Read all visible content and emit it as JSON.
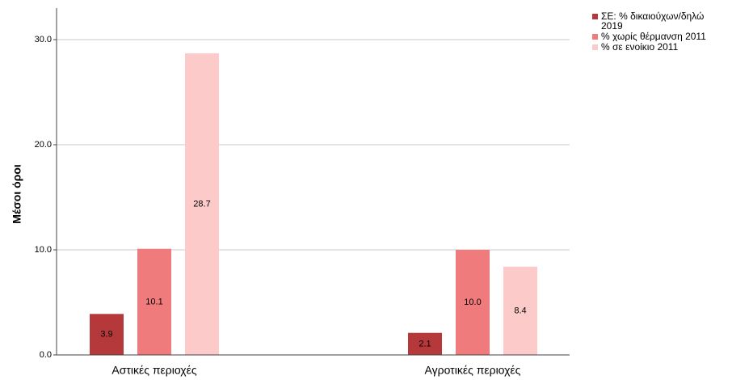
{
  "chart_data": {
    "type": "bar",
    "y_label": "Μέσοι όροι",
    "categories": [
      "Αστικές περιοχές",
      "Αγροτικές περιοχές"
    ],
    "series": [
      {
        "name": "ΣΕ: % δικαιούχων/δηλώ 2019",
        "color": "#b5393b",
        "values": [
          3.9,
          2.1
        ],
        "value_labels": [
          "3.9",
          "2.1"
        ]
      },
      {
        "name": "% χωρίς θέρμανση 2011",
        "color": "#f07b7c",
        "values": [
          10.1,
          10.0
        ],
        "value_labels": [
          "10.1",
          "10.0"
        ]
      },
      {
        "name": "% σε ενοίκιο 2011",
        "color": "#fdcaca",
        "values": [
          28.7,
          8.4
        ],
        "value_labels": [
          "28.7",
          "8.4"
        ]
      }
    ],
    "ylim": [
      0,
      33
    ],
    "yticks": [
      {
        "value": 0,
        "label": "0.0"
      },
      {
        "value": 10,
        "label": "10.0"
      },
      {
        "value": 20,
        "label": "20.0"
      },
      {
        "value": 30,
        "label": "30.0"
      }
    ],
    "grid": true,
    "legend": "right"
  }
}
